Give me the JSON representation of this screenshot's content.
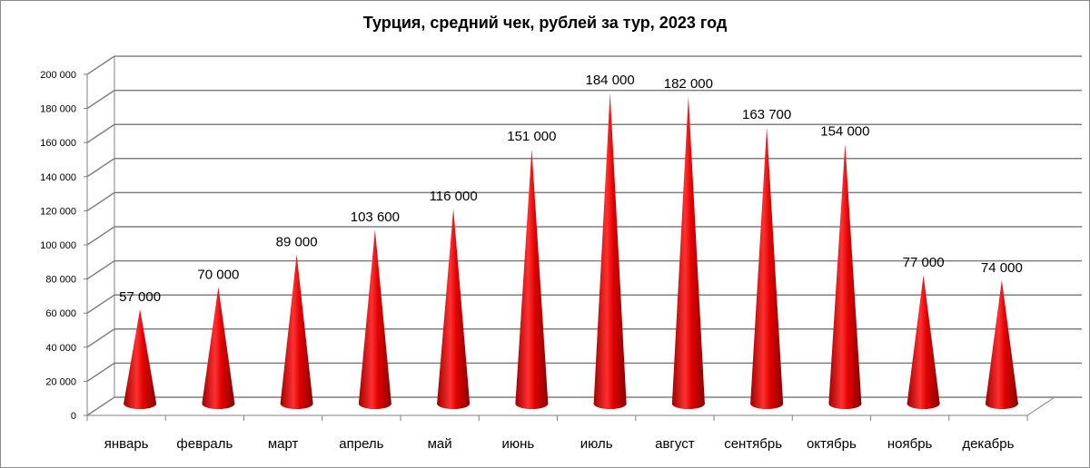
{
  "chart_data": {
    "type": "bar",
    "title": "Турция, средний чек, рублей за тур,  2023 год",
    "categories": [
      "январь",
      "февраль",
      "март",
      "апрель",
      "май",
      "июнь",
      "июль",
      "август",
      "сентябрь",
      "октябрь",
      "ноябрь",
      "декабрь"
    ],
    "values": [
      57000,
      70000,
      89000,
      103600,
      116000,
      151000,
      184000,
      182000,
      163700,
      154000,
      77000,
      74000
    ],
    "value_labels": [
      "57 000",
      "70 000",
      "89 000",
      "103 600",
      "116 000",
      "151 000",
      "184 000",
      "182 000",
      "163 700",
      "154 000",
      "77 000",
      "74 000"
    ],
    "y_ticks": [
      0,
      20000,
      40000,
      60000,
      80000,
      100000,
      120000,
      140000,
      160000,
      180000,
      200000
    ],
    "y_tick_labels": [
      "0",
      "20 000",
      "40 000",
      "60 000",
      "80 000",
      "100 000",
      "120 000",
      "140 000",
      "160 000",
      "180 000",
      "200 000"
    ],
    "ylim": [
      0,
      200000
    ],
    "xlabel": "",
    "ylabel": "",
    "grid": true,
    "legend": "none",
    "style": "3d-cone",
    "colors": {
      "bar": "#e00000",
      "bar_dark": "#9a0000",
      "bar_light": "#ff5a5a",
      "grid": "#808080",
      "text": "#000000"
    }
  }
}
